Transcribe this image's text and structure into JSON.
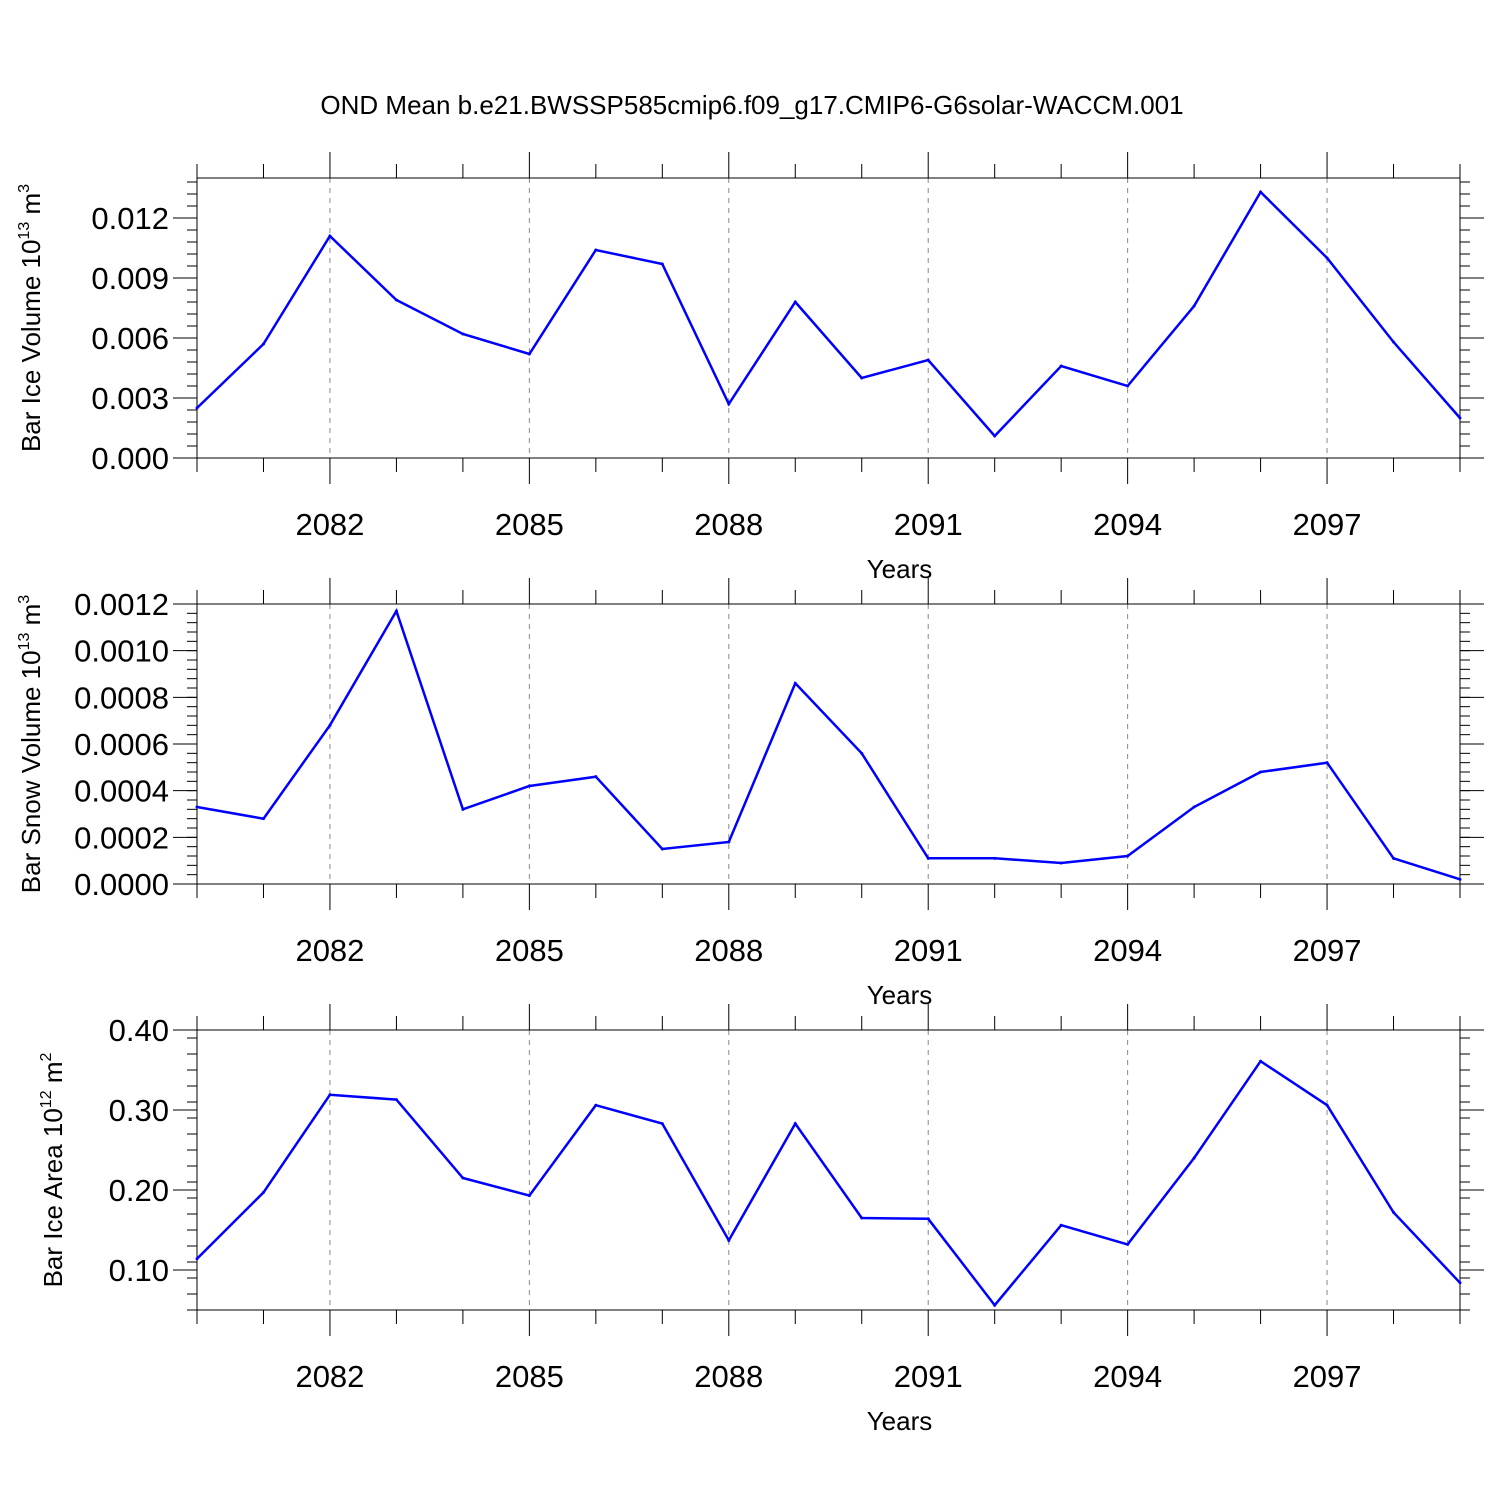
{
  "figure": {
    "title": "OND Mean b.e21.BWSSP585cmip6.f09_g17.CMIP6-G6solar-WACCM.001"
  },
  "chart_data": [
    {
      "type": "line",
      "xlabel": "Years",
      "ylabel": {
        "text": "Bar Ice Volume 10",
        "sup": "13",
        "unit": " m",
        "unit_sup": "3"
      },
      "xlim": [
        2080,
        2099
      ],
      "ylim": [
        0,
        0.014
      ],
      "yticks": [
        0.0,
        0.003,
        0.006,
        0.009,
        0.012
      ],
      "ytick_labels": [
        "0.000",
        "0.003",
        "0.006",
        "0.009",
        "0.012"
      ],
      "ytick_minor_step": 0.0006,
      "xticks": [
        2082,
        2085,
        2088,
        2091,
        2094,
        2097
      ],
      "xtick_labels": [
        "2082",
        "2085",
        "2088",
        "2091",
        "2094",
        "2097"
      ],
      "grid": "vertical-dashed",
      "line_color": "#0000ff",
      "x": [
        2080,
        2081,
        2082,
        2083,
        2084,
        2085,
        2086,
        2087,
        2088,
        2089,
        2090,
        2091,
        2092,
        2093,
        2094,
        2095,
        2096,
        2097,
        2098,
        2099
      ],
      "y": [
        0.0025,
        0.0057,
        0.0111,
        0.0079,
        0.0062,
        0.0052,
        0.0104,
        0.0097,
        0.0027,
        0.0078,
        0.004,
        0.0049,
        0.0011,
        0.0046,
        0.0036,
        0.0076,
        0.0133,
        0.01,
        0.0058,
        0.002
      ]
    },
    {
      "type": "line",
      "xlabel": "Years",
      "ylabel": {
        "text": "Bar Snow Volume 10",
        "sup": "13",
        "unit": " m",
        "unit_sup": "3"
      },
      "xlim": [
        2080,
        2099
      ],
      "ylim": [
        0,
        0.0012
      ],
      "yticks": [
        0.0,
        0.0002,
        0.0004,
        0.0006,
        0.0008,
        0.001,
        0.0012
      ],
      "ytick_labels": [
        "0.0000",
        "0.0002",
        "0.0004",
        "0.0006",
        "0.0008",
        "0.0010",
        "0.0012"
      ],
      "ytick_minor_step": 4e-05,
      "xticks": [
        2082,
        2085,
        2088,
        2091,
        2094,
        2097
      ],
      "xtick_labels": [
        "2082",
        "2085",
        "2088",
        "2091",
        "2094",
        "2097"
      ],
      "grid": "vertical-dashed",
      "line_color": "#0000ff",
      "x": [
        2080,
        2081,
        2082,
        2083,
        2084,
        2085,
        2086,
        2087,
        2088,
        2089,
        2090,
        2091,
        2092,
        2093,
        2094,
        2095,
        2096,
        2097,
        2098,
        2099
      ],
      "y": [
        0.00033,
        0.00028,
        0.00068,
        0.00117,
        0.00032,
        0.00042,
        0.00046,
        0.00015,
        0.00018,
        0.00086,
        0.00056,
        0.00011,
        0.00011,
        9e-05,
        0.00012,
        0.00033,
        0.00048,
        0.00052,
        0.00011,
        2e-05
      ]
    },
    {
      "type": "line",
      "xlabel": "Years",
      "ylabel": {
        "text": "Bar Ice Area 10",
        "sup": "12",
        "unit": " m",
        "unit_sup": "2"
      },
      "xlim": [
        2080,
        2099
      ],
      "ylim": [
        0.05,
        0.4
      ],
      "yticks": [
        0.1,
        0.2,
        0.3,
        0.4
      ],
      "ytick_labels": [
        "0.10",
        "0.20",
        "0.30",
        "0.40"
      ],
      "ytick_minor_step": 0.02,
      "xticks": [
        2082,
        2085,
        2088,
        2091,
        2094,
        2097
      ],
      "xtick_labels": [
        "2082",
        "2085",
        "2088",
        "2091",
        "2094",
        "2097"
      ],
      "grid": "vertical-dashed",
      "line_color": "#0000ff",
      "x": [
        2080,
        2081,
        2082,
        2083,
        2084,
        2085,
        2086,
        2087,
        2088,
        2089,
        2090,
        2091,
        2092,
        2093,
        2094,
        2095,
        2096,
        2097,
        2098,
        2099
      ],
      "y": [
        0.114,
        0.197,
        0.319,
        0.313,
        0.215,
        0.193,
        0.306,
        0.283,
        0.137,
        0.283,
        0.165,
        0.164,
        0.056,
        0.156,
        0.132,
        0.24,
        0.361,
        0.306,
        0.172,
        0.084
      ]
    }
  ]
}
